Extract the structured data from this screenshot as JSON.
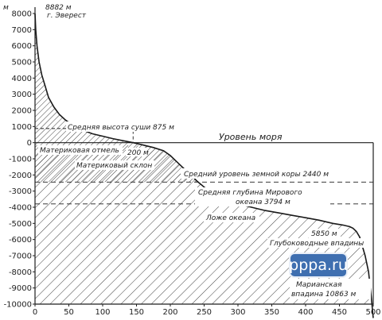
{
  "chart_data": {
    "type": "area",
    "title": "",
    "xlabel": "",
    "ylabel": "",
    "y_unit": "м",
    "xlim": [
      0,
      500
    ],
    "ylim": [
      -10000,
      8000
    ],
    "x_ticks": [
      "0",
      "50",
      "100",
      "150",
      "200",
      "250",
      "300",
      "350",
      "400",
      "450",
      "500"
    ],
    "y_ticks": [
      "8000",
      "7000",
      "6000",
      "5000",
      "4000",
      "3000",
      "2000",
      "1000",
      "0",
      "-1000",
      "-2000",
      "-3000",
      "-4000",
      "-5000",
      "-6000",
      "-7000",
      "-8000",
      "-9000",
      "-10000"
    ],
    "series": [
      {
        "x": [
          0,
          1,
          3,
          6,
          10,
          15,
          20,
          28,
          36,
          45,
          55,
          65,
          75,
          85,
          100,
          115,
          130,
          145,
          160,
          175,
          190,
          200,
          210,
          220,
          230,
          240,
          250,
          260,
          270,
          280,
          290,
          300,
          320,
          340,
          360,
          380,
          400,
          420,
          440,
          455,
          460,
          465,
          470,
          475,
          480,
          488,
          493,
          497,
          500
        ],
        "y": [
          8000,
          7000,
          6000,
          5000,
          4200,
          3500,
          2800,
          2200,
          1750,
          1400,
          1100,
          900,
          700,
          550,
          400,
          250,
          120,
          0,
          -150,
          -300,
          -500,
          -800,
          -1200,
          -1600,
          -2000,
          -2400,
          -2750,
          -3050,
          -3300,
          -3500,
          -3650,
          -3800,
          -4000,
          -4200,
          -4350,
          -4500,
          -4650,
          -4800,
          -5000,
          -5100,
          -5150,
          -5200,
          -5300,
          -5500,
          -5850,
          -7000,
          -8000,
          -9500,
          -10863
        ]
      }
    ],
    "reference_lines": [
      {
        "label": "Уровень моря",
        "value": 0
      },
      {
        "label": "Средний уровень земной коры  2440 м",
        "value": -2440
      },
      {
        "label": "Средняя глубина Мирового",
        "label2": "океана  3794 м",
        "value": -3794
      }
    ],
    "region_labels": [
      "Материковая отмель",
      "Материковый склон",
      "Ложе океана",
      "Глубоководные впадины"
    ],
    "annotations": {
      "peak_value": "8882 м",
      "peak_name": "г. Эверест",
      "avg_land": "Средняя высота суши  875 м",
      "shelf_edge": "200 м",
      "trench_top": "5850 м",
      "trench_name": "Марианская",
      "trench_value": "впадина 10863 м"
    },
    "grid": false,
    "legend": "none"
  },
  "watermark": {
    "text": "pppa.ru"
  }
}
